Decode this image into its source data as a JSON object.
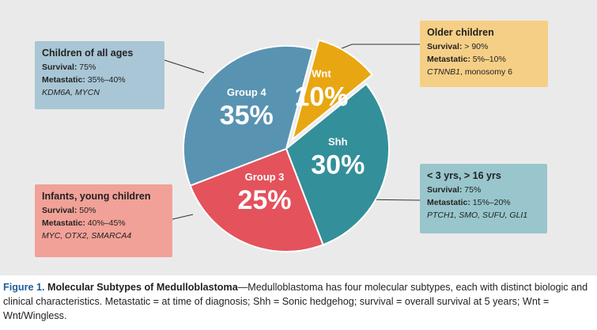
{
  "chart_data": {
    "type": "pie",
    "slices": [
      {
        "label": "Wnt",
        "value": 10,
        "value_text": "10%",
        "color": "#e8a612"
      },
      {
        "label": "Shh",
        "value": 30,
        "value_text": "30%",
        "color": "#338f99"
      },
      {
        "label": "Group 3",
        "value": 25,
        "value_text": "25%",
        "color": "#e4525c"
      },
      {
        "label": "Group 4",
        "value": 35,
        "value_text": "35%",
        "color": "#5993b2"
      }
    ],
    "start_angle_deg": 15,
    "exploded": "Wnt"
  },
  "callouts": {
    "older": {
      "title": "Older children",
      "survival_label": "Survival:",
      "survival_value": " > 90%",
      "metastatic_label": "Metastatic:",
      "metastatic_value": " 5%–10%",
      "gene": "CTNNB1",
      "extra": ", monosomy 6",
      "color": "#f6cf86"
    },
    "all_ages": {
      "title": "Children of all ages",
      "survival_label": "Survival:",
      "survival_value": " 75%",
      "metastatic_label": "Metastatic:",
      "metastatic_value": " 35%–40%",
      "genes": "KDM6A, MYCN",
      "color": "#a8c6d5"
    },
    "shh": {
      "title": "< 3 yrs, > 16 yrs",
      "survival_label": "Survival:",
      "survival_value": " 75%",
      "metastatic_label": "Metastatic:",
      "metastatic_value": " 15%–20%",
      "genes": "PTCH1, SMO, SUFU, GLI1",
      "color": "#98c6cc"
    },
    "infants": {
      "title": "Infants, young children",
      "survival_label": "Survival:",
      "survival_value": " 50%",
      "metastatic_label": "Metastatic:",
      "metastatic_value": " 40%–45%",
      "genes": "MYC, OTX2, SMARCA4",
      "color": "#f1a197"
    }
  },
  "caption": {
    "label": "Figure 1.",
    "title": "Molecular Subtypes of Medulloblastoma",
    "body": "—Medulloblastoma has four molecular subtypes, each with distinct biologic and clinical characteristics. Metastatic = at time of diagnosis; Shh = Sonic hedgehog; survival = overall survival at 5 years; Wnt = Wnt/Wingless."
  }
}
